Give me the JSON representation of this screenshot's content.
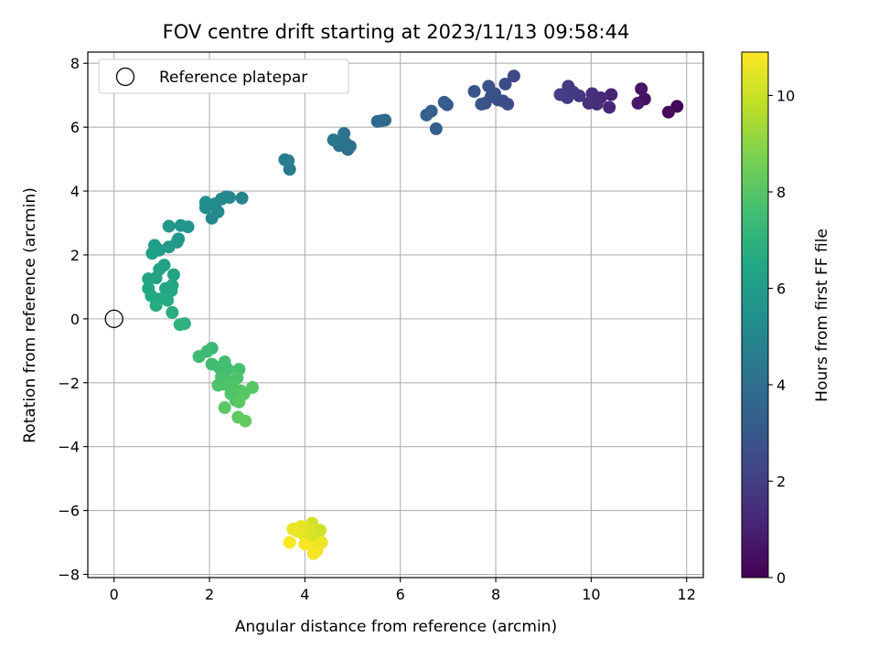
{
  "chart_data": {
    "type": "scatter",
    "title": "FOV centre drift starting at 2023/11/13 09:58:44",
    "xlabel": "Angular distance from reference (arcmin)",
    "ylabel": "Rotation from reference (arcmin)",
    "xlim": [
      -0.55,
      12.35
    ],
    "ylim": [
      -8.1,
      8.35
    ],
    "xticks": [
      0,
      2,
      4,
      6,
      8,
      10,
      12
    ],
    "yticks": [
      -8,
      -6,
      -4,
      -2,
      0,
      2,
      4,
      6,
      8
    ],
    "grid": true,
    "legend": {
      "position": "top-left",
      "entries": [
        "Reference platepar"
      ]
    },
    "reference_point": {
      "x": 0,
      "y": 0,
      "marker": "open-circle"
    },
    "colormap": "viridis",
    "colorbar": {
      "label": "Hours from first FF file",
      "range": [
        0,
        10.9
      ],
      "ticks": [
        0,
        2,
        4,
        6,
        8,
        10
      ]
    },
    "points": [
      {
        "x": 11.8,
        "y": 6.65,
        "h": 0.2
      },
      {
        "x": 11.62,
        "y": 6.47,
        "h": 0.3
      },
      {
        "x": 11.12,
        "y": 6.88,
        "h": 0.5
      },
      {
        "x": 11.05,
        "y": 7.2,
        "h": 0.6
      },
      {
        "x": 10.98,
        "y": 6.75,
        "h": 0.7
      },
      {
        "x": 10.42,
        "y": 7.02,
        "h": 1.1
      },
      {
        "x": 10.38,
        "y": 6.62,
        "h": 1.2
      },
      {
        "x": 10.2,
        "y": 6.92,
        "h": 1.3
      },
      {
        "x": 10.12,
        "y": 6.72,
        "h": 1.4
      },
      {
        "x": 10.02,
        "y": 7.05,
        "h": 1.5
      },
      {
        "x": 9.95,
        "y": 6.75,
        "h": 1.5
      },
      {
        "x": 9.75,
        "y": 6.98,
        "h": 1.7
      },
      {
        "x": 9.62,
        "y": 7.1,
        "h": 1.8
      },
      {
        "x": 9.52,
        "y": 7.28,
        "h": 1.8
      },
      {
        "x": 9.5,
        "y": 6.92,
        "h": 1.9
      },
      {
        "x": 9.35,
        "y": 7.02,
        "h": 2.0
      },
      {
        "x": 8.38,
        "y": 7.6,
        "h": 2.4
      },
      {
        "x": 8.25,
        "y": 6.72,
        "h": 2.5
      },
      {
        "x": 8.2,
        "y": 7.35,
        "h": 2.5
      },
      {
        "x": 8.15,
        "y": 6.82,
        "h": 2.6
      },
      {
        "x": 8.05,
        "y": 6.85,
        "h": 2.6
      },
      {
        "x": 7.98,
        "y": 7.05,
        "h": 2.7
      },
      {
        "x": 7.9,
        "y": 6.95,
        "h": 2.7
      },
      {
        "x": 7.85,
        "y": 7.28,
        "h": 2.8
      },
      {
        "x": 7.78,
        "y": 6.75,
        "h": 2.8
      },
      {
        "x": 7.7,
        "y": 6.72,
        "h": 2.9
      },
      {
        "x": 7.55,
        "y": 7.12,
        "h": 2.9
      },
      {
        "x": 6.98,
        "y": 6.7,
        "h": 3.1
      },
      {
        "x": 6.92,
        "y": 6.78,
        "h": 3.2
      },
      {
        "x": 6.75,
        "y": 5.95,
        "h": 3.3
      },
      {
        "x": 6.65,
        "y": 6.5,
        "h": 3.4
      },
      {
        "x": 6.55,
        "y": 6.38,
        "h": 3.4
      },
      {
        "x": 5.68,
        "y": 6.22,
        "h": 3.7
      },
      {
        "x": 5.6,
        "y": 6.2,
        "h": 3.7
      },
      {
        "x": 5.52,
        "y": 6.18,
        "h": 3.8
      },
      {
        "x": 4.95,
        "y": 5.4,
        "h": 4.0
      },
      {
        "x": 4.9,
        "y": 5.3,
        "h": 4.0
      },
      {
        "x": 4.85,
        "y": 5.5,
        "h": 4.1
      },
      {
        "x": 4.82,
        "y": 5.8,
        "h": 4.1
      },
      {
        "x": 4.72,
        "y": 5.42,
        "h": 4.2
      },
      {
        "x": 4.68,
        "y": 5.55,
        "h": 4.2
      },
      {
        "x": 4.6,
        "y": 5.6,
        "h": 4.3
      },
      {
        "x": 3.68,
        "y": 4.68,
        "h": 4.5
      },
      {
        "x": 3.65,
        "y": 4.95,
        "h": 4.5
      },
      {
        "x": 3.58,
        "y": 4.98,
        "h": 4.6
      },
      {
        "x": 2.68,
        "y": 3.78,
        "h": 4.9
      },
      {
        "x": 2.42,
        "y": 3.8,
        "h": 5.0
      },
      {
        "x": 2.35,
        "y": 3.82,
        "h": 5.0
      },
      {
        "x": 2.25,
        "y": 3.75,
        "h": 5.1
      },
      {
        "x": 2.18,
        "y": 3.35,
        "h": 5.1
      },
      {
        "x": 2.12,
        "y": 3.6,
        "h": 5.2
      },
      {
        "x": 2.05,
        "y": 3.15,
        "h": 5.2
      },
      {
        "x": 1.98,
        "y": 3.55,
        "h": 5.3
      },
      {
        "x": 1.92,
        "y": 3.48,
        "h": 5.3
      },
      {
        "x": 1.92,
        "y": 3.65,
        "h": 5.4
      },
      {
        "x": 1.55,
        "y": 2.88,
        "h": 5.6
      },
      {
        "x": 1.4,
        "y": 2.92,
        "h": 5.7
      },
      {
        "x": 1.35,
        "y": 2.5,
        "h": 5.7
      },
      {
        "x": 1.32,
        "y": 2.4,
        "h": 5.8
      },
      {
        "x": 1.15,
        "y": 2.9,
        "h": 5.8
      },
      {
        "x": 1.15,
        "y": 2.25,
        "h": 5.9
      },
      {
        "x": 0.95,
        "y": 2.15,
        "h": 6.0
      },
      {
        "x": 0.85,
        "y": 2.3,
        "h": 6.0
      },
      {
        "x": 0.8,
        "y": 2.05,
        "h": 6.1
      },
      {
        "x": 1.05,
        "y": 1.68,
        "h": 6.2
      },
      {
        "x": 0.95,
        "y": 1.55,
        "h": 6.2
      },
      {
        "x": 1.25,
        "y": 1.38,
        "h": 6.3
      },
      {
        "x": 0.88,
        "y": 1.28,
        "h": 6.3
      },
      {
        "x": 0.72,
        "y": 1.25,
        "h": 6.4
      },
      {
        "x": 1.22,
        "y": 1.05,
        "h": 6.4
      },
      {
        "x": 1.2,
        "y": 0.88,
        "h": 6.5
      },
      {
        "x": 1.08,
        "y": 0.95,
        "h": 6.5
      },
      {
        "x": 0.72,
        "y": 0.95,
        "h": 6.5
      },
      {
        "x": 0.78,
        "y": 0.72,
        "h": 6.6
      },
      {
        "x": 0.95,
        "y": 0.62,
        "h": 6.6
      },
      {
        "x": 1.12,
        "y": 0.58,
        "h": 6.7
      },
      {
        "x": 0.88,
        "y": 0.42,
        "h": 6.7
      },
      {
        "x": 1.22,
        "y": 0.2,
        "h": 6.8
      },
      {
        "x": 1.48,
        "y": -0.15,
        "h": 6.9
      },
      {
        "x": 1.38,
        "y": -0.18,
        "h": 7.0
      },
      {
        "x": 2.05,
        "y": -0.92,
        "h": 7.3
      },
      {
        "x": 1.95,
        "y": -1.02,
        "h": 7.4
      },
      {
        "x": 1.78,
        "y": -1.18,
        "h": 7.4
      },
      {
        "x": 2.05,
        "y": -1.42,
        "h": 7.5
      },
      {
        "x": 2.2,
        "y": -1.52,
        "h": 7.5
      },
      {
        "x": 2.32,
        "y": -1.35,
        "h": 7.6
      },
      {
        "x": 2.38,
        "y": -1.58,
        "h": 7.6
      },
      {
        "x": 2.25,
        "y": -1.82,
        "h": 7.7
      },
      {
        "x": 2.42,
        "y": -1.95,
        "h": 7.7
      },
      {
        "x": 2.62,
        "y": -1.58,
        "h": 7.7
      },
      {
        "x": 2.58,
        "y": -1.85,
        "h": 7.8
      },
      {
        "x": 2.18,
        "y": -2.08,
        "h": 7.8
      },
      {
        "x": 2.32,
        "y": -2.05,
        "h": 7.8
      },
      {
        "x": 2.5,
        "y": -2.15,
        "h": 7.9
      },
      {
        "x": 2.45,
        "y": -2.35,
        "h": 7.9
      },
      {
        "x": 2.55,
        "y": -2.55,
        "h": 7.9
      },
      {
        "x": 2.65,
        "y": -2.25,
        "h": 8.0
      },
      {
        "x": 2.72,
        "y": -2.35,
        "h": 8.0
      },
      {
        "x": 2.9,
        "y": -2.15,
        "h": 8.0
      },
      {
        "x": 2.62,
        "y": -2.6,
        "h": 8.1
      },
      {
        "x": 2.32,
        "y": -2.78,
        "h": 8.1
      },
      {
        "x": 2.6,
        "y": -3.08,
        "h": 8.2
      },
      {
        "x": 2.75,
        "y": -3.2,
        "h": 8.3
      },
      {
        "x": 4.2,
        "y": -7.0,
        "h": 10.0
      },
      {
        "x": 4.32,
        "y": -6.62,
        "h": 10.1
      },
      {
        "x": 4.3,
        "y": -6.95,
        "h": 10.1
      },
      {
        "x": 4.22,
        "y": -6.75,
        "h": 10.2
      },
      {
        "x": 4.15,
        "y": -6.4,
        "h": 10.2
      },
      {
        "x": 4.1,
        "y": -6.62,
        "h": 10.3
      },
      {
        "x": 4.05,
        "y": -6.85,
        "h": 10.3
      },
      {
        "x": 4.0,
        "y": -6.55,
        "h": 10.4
      },
      {
        "x": 3.95,
        "y": -6.72,
        "h": 10.4
      },
      {
        "x": 3.92,
        "y": -6.5,
        "h": 10.5
      },
      {
        "x": 3.85,
        "y": -6.65,
        "h": 10.5
      },
      {
        "x": 3.75,
        "y": -6.58,
        "h": 10.6
      },
      {
        "x": 4.35,
        "y": -7.0,
        "h": 10.6
      },
      {
        "x": 4.18,
        "y": -7.15,
        "h": 10.7
      },
      {
        "x": 4.25,
        "y": -7.25,
        "h": 10.7
      },
      {
        "x": 4.18,
        "y": -7.35,
        "h": 10.8
      },
      {
        "x": 4.0,
        "y": -7.05,
        "h": 10.8
      },
      {
        "x": 3.68,
        "y": -7.0,
        "h": 10.9
      }
    ]
  }
}
